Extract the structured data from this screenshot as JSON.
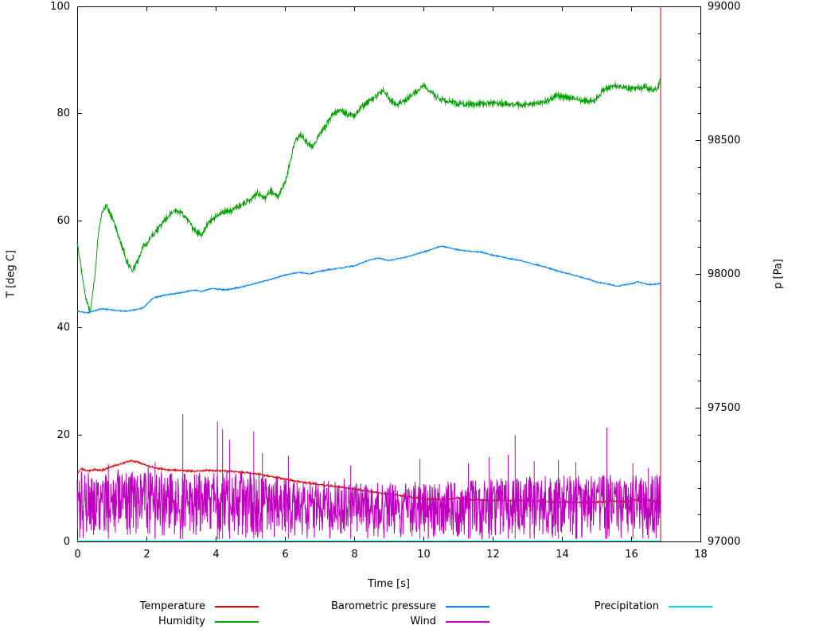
{
  "page": {
    "background": "#ffffff"
  },
  "chart_data": {
    "type": "line",
    "title": "",
    "xlabel": "Time [s]",
    "ylabel_left": "T [deg C]",
    "ylabel_right": "p [Pa]",
    "x_range": [
      0,
      18
    ],
    "y_left_range": [
      0,
      100
    ],
    "y_right_range": [
      97000,
      99000
    ],
    "x_ticks": [
      0,
      2,
      4,
      6,
      8,
      10,
      12,
      14,
      16,
      18
    ],
    "y_left_ticks": [
      0,
      20,
      40,
      60,
      80,
      100
    ],
    "y_right_ticks": [
      97000,
      97500,
      98000,
      98500,
      99000
    ],
    "y_right_minor_step": 100,
    "grid": false,
    "axis_color": "#000000",
    "series": [
      {
        "name": "Temperature",
        "color": "#e00000",
        "axis": "left",
        "noise": 0.22,
        "seed": 11,
        "vline": {
          "x": 16.85,
          "y_from": 0,
          "y_to": 100
        },
        "points": [
          [
            0,
            12.6
          ],
          [
            0.1,
            13.6
          ],
          [
            0.3,
            13.2
          ],
          [
            0.5,
            13.4
          ],
          [
            0.7,
            13.3
          ],
          [
            0.9,
            13.8
          ],
          [
            1.1,
            14.2
          ],
          [
            1.3,
            14.6
          ],
          [
            1.55,
            15.1
          ],
          [
            1.8,
            14.8
          ],
          [
            2.0,
            14.2
          ],
          [
            2.3,
            13.7
          ],
          [
            2.6,
            13.4
          ],
          [
            3.0,
            13.3
          ],
          [
            3.4,
            13.1
          ],
          [
            3.8,
            13.3
          ],
          [
            4.2,
            13.2
          ],
          [
            4.6,
            13.0
          ],
          [
            5.0,
            12.8
          ],
          [
            5.4,
            12.4
          ],
          [
            5.8,
            11.9
          ],
          [
            6.2,
            11.4
          ],
          [
            6.6,
            11.0
          ],
          [
            7.0,
            10.6
          ],
          [
            7.4,
            10.3
          ],
          [
            7.8,
            10.0
          ],
          [
            8.2,
            9.6
          ],
          [
            8.6,
            9.2
          ],
          [
            9.0,
            8.9
          ],
          [
            9.4,
            8.5
          ],
          [
            9.8,
            8.2
          ],
          [
            10.2,
            7.9
          ],
          [
            10.6,
            7.8
          ],
          [
            11.0,
            8.1
          ],
          [
            11.4,
            7.8
          ],
          [
            11.8,
            7.7
          ],
          [
            12.2,
            7.7
          ],
          [
            12.6,
            7.6
          ],
          [
            13.0,
            7.6
          ],
          [
            13.4,
            7.5
          ],
          [
            13.8,
            7.4
          ],
          [
            14.2,
            7.4
          ],
          [
            14.6,
            7.3
          ],
          [
            15.0,
            7.3
          ],
          [
            15.4,
            7.5
          ],
          [
            15.8,
            7.5
          ],
          [
            16.1,
            7.7
          ],
          [
            16.4,
            7.8
          ],
          [
            16.6,
            7.6
          ],
          [
            16.85,
            7.4
          ]
        ]
      },
      {
        "name": "Humidity",
        "color": "#00a000",
        "axis": "left",
        "noise": 0.65,
        "seed": 22,
        "points": [
          [
            0,
            56
          ],
          [
            0.12,
            51
          ],
          [
            0.25,
            45.5
          ],
          [
            0.38,
            43
          ],
          [
            0.5,
            49
          ],
          [
            0.62,
            58
          ],
          [
            0.72,
            61.5
          ],
          [
            0.85,
            63
          ],
          [
            1.0,
            60.5
          ],
          [
            1.15,
            58
          ],
          [
            1.3,
            55
          ],
          [
            1.45,
            52
          ],
          [
            1.6,
            50.5
          ],
          [
            1.75,
            52.5
          ],
          [
            1.9,
            55
          ],
          [
            2.05,
            56
          ],
          [
            2.2,
            57.5
          ],
          [
            2.4,
            59
          ],
          [
            2.6,
            60.5
          ],
          [
            2.8,
            61.8
          ],
          [
            3.0,
            61.5
          ],
          [
            3.2,
            60
          ],
          [
            3.4,
            58
          ],
          [
            3.6,
            57.5
          ],
          [
            3.8,
            59.5
          ],
          [
            4.0,
            60.5
          ],
          [
            4.2,
            61.5
          ],
          [
            4.5,
            62
          ],
          [
            4.8,
            63
          ],
          [
            5.0,
            64
          ],
          [
            5.2,
            65.2
          ],
          [
            5.4,
            64.2
          ],
          [
            5.6,
            65.5
          ],
          [
            5.8,
            64.3
          ],
          [
            6.0,
            67
          ],
          [
            6.15,
            71
          ],
          [
            6.3,
            75
          ],
          [
            6.45,
            76
          ],
          [
            6.6,
            74.8
          ],
          [
            6.8,
            73.8
          ],
          [
            7.0,
            76
          ],
          [
            7.2,
            78
          ],
          [
            7.4,
            80
          ],
          [
            7.6,
            80.5
          ],
          [
            7.8,
            79.8
          ],
          [
            8.0,
            79.6
          ],
          [
            8.2,
            81
          ],
          [
            8.45,
            82.5
          ],
          [
            8.65,
            83.2
          ],
          [
            8.85,
            84.3
          ],
          [
            9.05,
            82.3
          ],
          [
            9.25,
            81.6
          ],
          [
            9.5,
            82.6
          ],
          [
            9.75,
            83.8
          ],
          [
            10.0,
            85.3
          ],
          [
            10.2,
            84
          ],
          [
            10.45,
            82.8
          ],
          [
            10.7,
            82.2
          ],
          [
            11.0,
            81.9
          ],
          [
            11.3,
            81.7
          ],
          [
            11.6,
            81.6
          ],
          [
            12.0,
            82
          ],
          [
            12.4,
            81.8
          ],
          [
            12.8,
            81.6
          ],
          [
            13.2,
            81.8
          ],
          [
            13.6,
            82.3
          ],
          [
            13.85,
            83.4
          ],
          [
            14.1,
            83.1
          ],
          [
            14.4,
            82.7
          ],
          [
            14.7,
            82.2
          ],
          [
            14.95,
            82.4
          ],
          [
            15.2,
            84.4
          ],
          [
            15.5,
            85.2
          ],
          [
            15.8,
            84.9
          ],
          [
            16.1,
            84.7
          ],
          [
            16.4,
            84.9
          ],
          [
            16.6,
            84.4
          ],
          [
            16.75,
            84.6
          ],
          [
            16.85,
            86.3
          ]
        ]
      },
      {
        "name": "Barometric pressure",
        "color": "#0084ff",
        "axis": "right",
        "noise": 3,
        "seed": 33,
        "points": [
          [
            0,
            97860
          ],
          [
            0.3,
            97854
          ],
          [
            0.7,
            97870
          ],
          [
            1.1,
            97864
          ],
          [
            1.4,
            97860
          ],
          [
            1.9,
            97872
          ],
          [
            2.2,
            97910
          ],
          [
            2.5,
            97920
          ],
          [
            3.0,
            97930
          ],
          [
            3.4,
            97940
          ],
          [
            3.6,
            97934
          ],
          [
            3.9,
            97946
          ],
          [
            4.3,
            97940
          ],
          [
            4.7,
            97950
          ],
          [
            5.2,
            97966
          ],
          [
            5.6,
            97980
          ],
          [
            6.0,
            97996
          ],
          [
            6.4,
            98006
          ],
          [
            6.7,
            98000
          ],
          [
            7.0,
            98010
          ],
          [
            7.5,
            98020
          ],
          [
            8.0,
            98030
          ],
          [
            8.4,
            98050
          ],
          [
            8.7,
            98060
          ],
          [
            9.0,
            98050
          ],
          [
            9.4,
            98060
          ],
          [
            9.7,
            98070
          ],
          [
            10.1,
            98086
          ],
          [
            10.5,
            98104
          ],
          [
            11.0,
            98090
          ],
          [
            11.4,
            98084
          ],
          [
            11.7,
            98080
          ],
          [
            12.0,
            98070
          ],
          [
            12.4,
            98060
          ],
          [
            12.8,
            98050
          ],
          [
            13.1,
            98040
          ],
          [
            13.5,
            98026
          ],
          [
            13.9,
            98010
          ],
          [
            14.2,
            98000
          ],
          [
            14.6,
            97986
          ],
          [
            15.0,
            97970
          ],
          [
            15.4,
            97960
          ],
          [
            15.6,
            97954
          ],
          [
            16.0,
            97964
          ],
          [
            16.2,
            97970
          ],
          [
            16.5,
            97960
          ],
          [
            16.85,
            97964
          ]
        ]
      },
      {
        "name": "Wind",
        "color": "#bf00bf",
        "axis": "left",
        "style": "noise-band",
        "seed": 44,
        "x_start": 0,
        "x_end": 16.85,
        "band_bottom": 0.3,
        "band_top_points": [
          [
            0,
            13
          ],
          [
            5.2,
            13
          ],
          [
            6.0,
            11.6
          ],
          [
            9.0,
            11.0
          ],
          [
            11.5,
            11.5
          ],
          [
            12.8,
            12.2
          ],
          [
            16.85,
            12.6
          ]
        ],
        "spikes": [
          [
            0.9,
            14.5
          ],
          [
            2.25,
            14.8
          ],
          [
            3.05,
            23.8
          ],
          [
            4.05,
            22.4
          ],
          [
            4.2,
            21.0
          ],
          [
            4.4,
            19.0
          ],
          [
            5.1,
            20.6
          ],
          [
            5.35,
            16.5
          ],
          [
            6.1,
            16.0
          ],
          [
            7.9,
            14.2
          ],
          [
            9.9,
            15.4
          ],
          [
            11.3,
            14.6
          ],
          [
            11.9,
            15.8
          ],
          [
            12.45,
            16.2
          ],
          [
            12.65,
            19.9
          ],
          [
            13.2,
            15.0
          ],
          [
            13.9,
            15.2
          ],
          [
            14.4,
            14.8
          ],
          [
            15.3,
            21.3
          ],
          [
            16.05,
            14.6
          ],
          [
            16.5,
            13.8
          ]
        ]
      },
      {
        "name": "Precipitation",
        "color": "#00dddd",
        "axis": "left",
        "noise": 0,
        "seed": 55,
        "points": [
          [
            0,
            0.1
          ],
          [
            16.85,
            0.1
          ]
        ]
      }
    ],
    "legend": {
      "rows": [
        [
          {
            "label": "Temperature",
            "color": "#e00000"
          },
          {
            "label": "Barometric pressure",
            "color": "#0084ff"
          },
          {
            "label": "Precipitation",
            "color": "#00dddd"
          }
        ],
        [
          {
            "label": "Humidity",
            "color": "#00a000"
          },
          {
            "label": "Wind",
            "color": "#bf00bf"
          }
        ]
      ]
    }
  }
}
